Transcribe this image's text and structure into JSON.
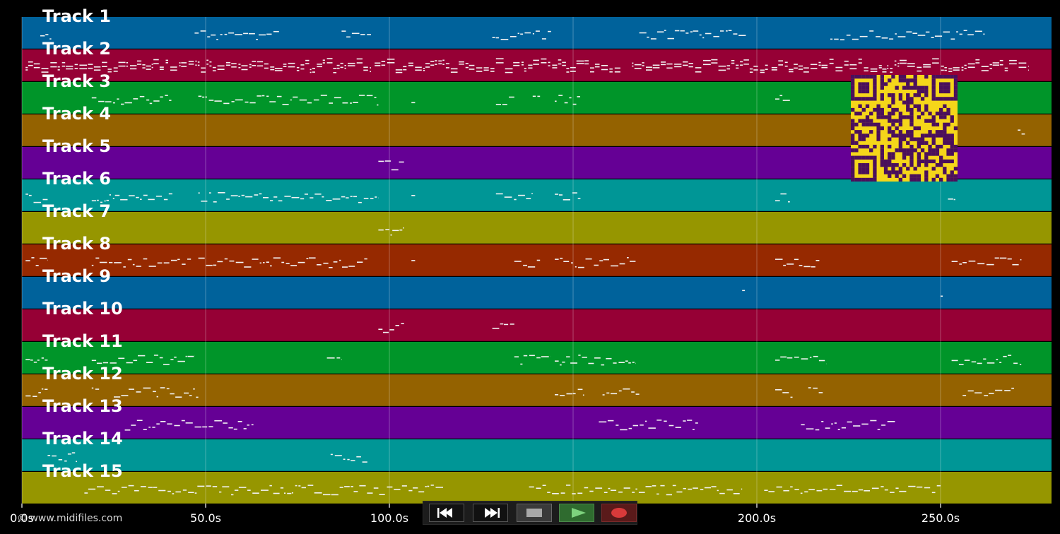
{
  "app": {
    "copyright": "© www.midifiles.com"
  },
  "timeline": {
    "ticks": [
      {
        "value": 0,
        "label": "0.0s"
      },
      {
        "value": 50,
        "label": "50.0s"
      },
      {
        "value": 100,
        "label": "100.0s"
      },
      {
        "value": 150,
        "label": "150.0s"
      },
      {
        "value": 200,
        "label": "200.0s"
      },
      {
        "value": 250,
        "label": "250.0s"
      }
    ],
    "max_seconds": 280
  },
  "tracks": [
    {
      "name": "Track 1",
      "color": "#00629b",
      "segments": [
        [
          5,
          8
        ],
        [
          47,
          70
        ],
        [
          87,
          95
        ],
        [
          128,
          144
        ],
        [
          168,
          197
        ],
        [
          220,
          262
        ]
      ]
    },
    {
      "name": "Track 2",
      "color": "#960035",
      "segments": [
        [
          1,
          95
        ],
        [
          96,
          163
        ],
        [
          166,
          203
        ],
        [
          204,
          274
        ]
      ]
    },
    {
      "name": "Track 3",
      "color": "#009529",
      "segments": [
        [
          19,
          41
        ],
        [
          48,
          97
        ],
        [
          106,
          107
        ],
        [
          129,
          134
        ],
        [
          139,
          141
        ],
        [
          145,
          152
        ],
        [
          205,
          209
        ]
      ]
    },
    {
      "name": "Track 4",
      "color": "#946200",
      "segments": [
        [
          271,
          273
        ]
      ]
    },
    {
      "name": "Track 5",
      "color": "#650095",
      "segments": [
        [
          97,
          104
        ]
      ]
    },
    {
      "name": "Track 6",
      "color": "#009696",
      "segments": [
        [
          1,
          7
        ],
        [
          19,
          41
        ],
        [
          48,
          97
        ],
        [
          106,
          107
        ],
        [
          129,
          139
        ],
        [
          145,
          152
        ],
        [
          205,
          209
        ],
        [
          252,
          254
        ]
      ]
    },
    {
      "name": "Track 7",
      "color": "#969600",
      "segments": [
        [
          97,
          104
        ]
      ]
    },
    {
      "name": "Track 8",
      "color": "#962900",
      "segments": [
        [
          1,
          7
        ],
        [
          19,
          46
        ],
        [
          48,
          94
        ],
        [
          106,
          107
        ],
        [
          134,
          141
        ],
        [
          145,
          167
        ],
        [
          205,
          217
        ],
        [
          253,
          272
        ]
      ]
    },
    {
      "name": "Track 9",
      "color": "#00629b",
      "segments": [
        [
          196,
          197
        ],
        [
          250,
          251
        ]
      ]
    },
    {
      "name": "Track 10",
      "color": "#960035",
      "segments": [
        [
          97,
          104
        ],
        [
          128,
          134
        ]
      ]
    },
    {
      "name": "Track 11",
      "color": "#009529",
      "segments": [
        [
          1,
          7
        ],
        [
          19,
          47
        ],
        [
          83,
          87
        ],
        [
          134,
          144
        ],
        [
          145,
          167
        ],
        [
          205,
          219
        ],
        [
          253,
          272
        ]
      ]
    },
    {
      "name": "Track 12",
      "color": "#946200",
      "segments": [
        [
          1,
          7
        ],
        [
          19,
          21
        ],
        [
          25,
          48
        ],
        [
          145,
          153
        ],
        [
          158,
          168
        ],
        [
          205,
          210
        ],
        [
          214,
          218
        ],
        [
          256,
          270
        ]
      ]
    },
    {
      "name": "Track 13",
      "color": "#650095",
      "segments": [
        [
          28,
          63
        ],
        [
          157,
          184
        ],
        [
          212,
          238
        ]
      ]
    },
    {
      "name": "Track 14",
      "color": "#009696",
      "segments": [
        [
          7,
          15
        ],
        [
          84,
          94
        ]
      ]
    },
    {
      "name": "Track 15",
      "color": "#969600",
      "segments": [
        [
          17,
          115
        ],
        [
          138,
          196
        ],
        [
          202,
          250
        ]
      ]
    }
  ],
  "transport": {
    "rewind_icon": "rewind-icon",
    "forward_icon": "fast-forward-icon",
    "stop_icon": "stop-icon",
    "play_icon": "play-icon",
    "record_icon": "record-icon"
  },
  "qr_code": {
    "icon": "qr-code-icon",
    "fg": "#4a0f5c",
    "bg": "#f5d61a"
  }
}
